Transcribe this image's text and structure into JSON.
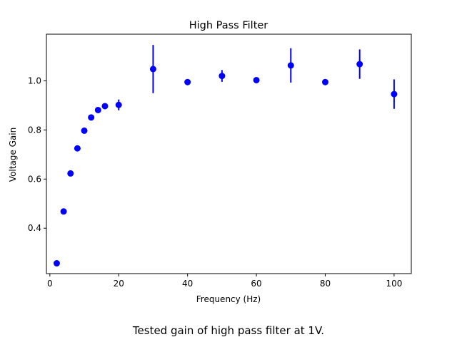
{
  "caption": "Tested gain of high pass filter at 1V.",
  "colors": {
    "marker": "#0000ff",
    "axes": "#000000",
    "background": "#ffffff"
  },
  "chart_data": {
    "type": "scatter",
    "title": "High Pass Filter",
    "xlabel": "Frequency (Hz)",
    "ylabel": "Voltage Gain",
    "xlim": [
      -1,
      105
    ],
    "ylim": [
      0.215,
      1.19
    ],
    "xticks": [
      0,
      20,
      40,
      60,
      80,
      100
    ],
    "yticks": [
      0.4,
      0.6,
      0.8,
      1.0
    ],
    "xtick_labels": [
      "0",
      "20",
      "40",
      "60",
      "80",
      "100"
    ],
    "ytick_labels": [
      "0.4",
      "0.6",
      "0.8",
      "1.0"
    ],
    "grid": false,
    "legend": "none",
    "series": [
      {
        "marker": "circle",
        "color": "#0000ff",
        "points": [
          {
            "x": 2,
            "y": 0.257,
            "err": 0
          },
          {
            "x": 4,
            "y": 0.468,
            "err": 0
          },
          {
            "x": 6,
            "y": 0.623,
            "err": 0
          },
          {
            "x": 8,
            "y": 0.725,
            "err": 0
          },
          {
            "x": 10,
            "y": 0.797,
            "err": 0
          },
          {
            "x": 12,
            "y": 0.851,
            "err": 0.01
          },
          {
            "x": 14,
            "y": 0.881,
            "err": 0
          },
          {
            "x": 16,
            "y": 0.897,
            "err": 0
          },
          {
            "x": 20,
            "y": 0.902,
            "err": 0.022
          },
          {
            "x": 30,
            "y": 1.048,
            "err": 0.098
          },
          {
            "x": 40,
            "y": 0.995,
            "err": 0
          },
          {
            "x": 50,
            "y": 1.02,
            "err": 0.024
          },
          {
            "x": 60,
            "y": 1.003,
            "err": 0
          },
          {
            "x": 70,
            "y": 1.063,
            "err": 0.07
          },
          {
            "x": 80,
            "y": 0.995,
            "err": 0
          },
          {
            "x": 90,
            "y": 1.068,
            "err": 0.06
          },
          {
            "x": 100,
            "y": 0.946,
            "err": 0.06
          }
        ]
      }
    ]
  }
}
